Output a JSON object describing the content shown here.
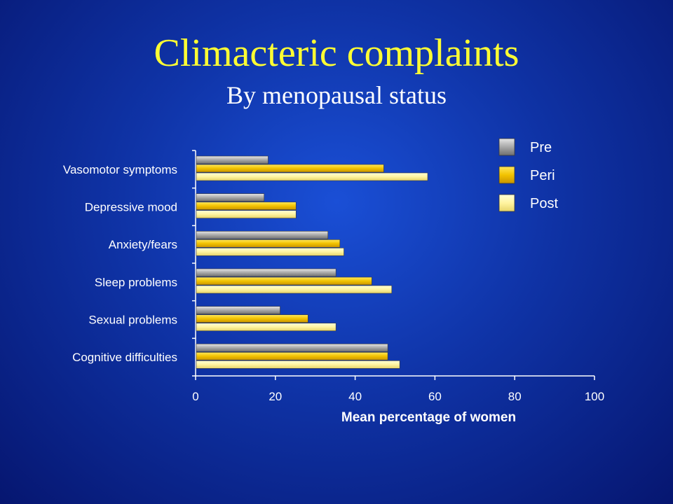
{
  "slide": {
    "title": "Climacteric complaints",
    "subtitle": "By menopausal status"
  },
  "chart_data": {
    "type": "bar",
    "orientation": "horizontal",
    "categories": [
      "Vasomotor symptoms",
      "Depressive mood",
      "Anxiety/fears",
      "Sleep problems",
      "Sexual problems",
      "Cognitive difficulties"
    ],
    "series": [
      {
        "name": "Pre",
        "values": [
          18,
          17,
          33,
          35,
          21,
          48
        ]
      },
      {
        "name": "Peri",
        "values": [
          47,
          25,
          36,
          44,
          28,
          48
        ]
      },
      {
        "name": "Post",
        "values": [
          58,
          25,
          37,
          49,
          35,
          51
        ]
      }
    ],
    "xlabel": "Mean percentage of women",
    "xlim": [
      0,
      100
    ],
    "xticks": [
      "0",
      "20",
      "40",
      "60",
      "80",
      "100"
    ],
    "legend_position": "top-right",
    "colors": {
      "Pre": "#a8a8a8",
      "Peri": "#f2c200",
      "Post": "#fff4a0"
    },
    "grid": false
  }
}
